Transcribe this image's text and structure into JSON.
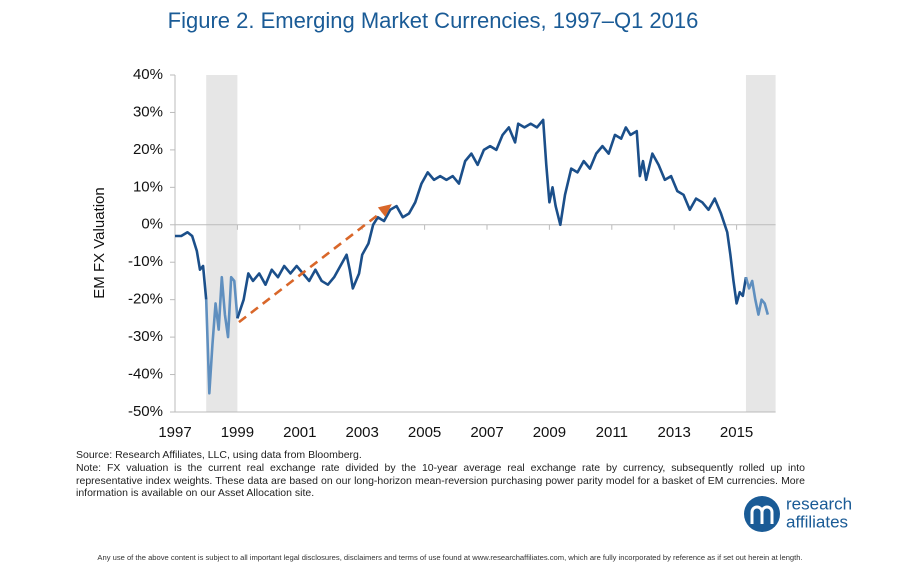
{
  "chart_data": {
    "type": "line",
    "title": "Figure 2. Emerging Market Currencies, 1997–Q1 2016",
    "ylabel": "EM FX Valuation",
    "xlim": [
      1997,
      2016.25
    ],
    "xticks": [
      1997,
      1999,
      2001,
      2003,
      2005,
      2007,
      2009,
      2011,
      2013,
      2015
    ],
    "ylim": [
      -50,
      40
    ],
    "yticks": [
      {
        "value": -50,
        "label": "-50%"
      },
      {
        "value": -40,
        "label": "-40%"
      },
      {
        "value": -30,
        "label": "-30%"
      },
      {
        "value": -20,
        "label": "-20%"
      },
      {
        "value": -10,
        "label": "-10%"
      },
      {
        "value": 0,
        "label": "0%"
      },
      {
        "value": 10,
        "label": "10%"
      },
      {
        "value": 20,
        "label": "20%"
      },
      {
        "value": 30,
        "label": "30%"
      },
      {
        "value": 40,
        "label": "40%"
      }
    ],
    "shaded_ranges": [
      [
        1998,
        1999
      ],
      [
        2015.3,
        2016.25
      ]
    ],
    "shade_color": "#e6e6e6",
    "arrow": {
      "x": [
        1999.05,
        2003.95
      ],
      "y": [
        -26,
        5.5
      ],
      "color": "#d9672a"
    },
    "series": [
      {
        "color": "#1b4f8a",
        "x": [
          1997,
          1997.2,
          1997.4,
          1997.55,
          1997.7,
          1997.8,
          1997.9,
          1998.0
        ],
        "values": [
          -3,
          -3,
          -2,
          -3,
          -7,
          -12,
          -11,
          -20
        ]
      },
      {
        "color": "#5f8fbf",
        "x": [
          1998.0,
          1998.1,
          1998.2,
          1998.3,
          1998.4,
          1998.5,
          1998.6,
          1998.7,
          1998.8,
          1998.9,
          1999.0
        ],
        "values": [
          -20,
          -45,
          -32,
          -21,
          -28,
          -14,
          -24,
          -30,
          -14,
          -15,
          -25
        ]
      },
      {
        "color": "#1b4f8a",
        "x": [
          1999.0,
          1999.2,
          1999.35,
          1999.5,
          1999.7,
          1999.9,
          2000.1,
          2000.3,
          2000.5,
          2000.7,
          2000.9,
          2001.1,
          2001.3,
          2001.5,
          2001.7,
          2001.9,
          2002.1,
          2002.3,
          2002.5,
          2002.6,
          2002.7,
          2002.9,
          2003.0,
          2003.2,
          2003.35,
          2003.5,
          2003.7,
          2003.9,
          2004.1,
          2004.3,
          2004.5,
          2004.7,
          2004.9,
          2005.1,
          2005.3,
          2005.5,
          2005.7,
          2005.9,
          2006.1,
          2006.3,
          2006.5,
          2006.7,
          2006.9,
          2007.1,
          2007.3,
          2007.5,
          2007.7,
          2007.9,
          2008.0,
          2008.2,
          2008.4,
          2008.6,
          2008.8,
          2008.9,
          2009.0,
          2009.1,
          2009.2,
          2009.35,
          2009.5,
          2009.7,
          2009.9,
          2010.1,
          2010.3,
          2010.5,
          2010.7,
          2010.9,
          2011.1,
          2011.3,
          2011.45,
          2011.6,
          2011.8,
          2011.9,
          2012.0,
          2012.1,
          2012.3,
          2012.5,
          2012.7,
          2012.9,
          2013.1,
          2013.3,
          2013.5,
          2013.7,
          2013.9,
          2014.1,
          2014.3,
          2014.5,
          2014.7,
          2014.8,
          2014.9,
          2015.0,
          2015.1,
          2015.2,
          2015.3
        ],
        "values": [
          -25,
          -20,
          -13,
          -15,
          -13,
          -16,
          -12,
          -14,
          -11,
          -13,
          -11,
          -13,
          -15,
          -12,
          -15,
          -16,
          -14,
          -11,
          -8,
          -12,
          -17,
          -13,
          -8,
          -5,
          0,
          2,
          1,
          4,
          5,
          2,
          3,
          6,
          11,
          14,
          12,
          13,
          12,
          13,
          11,
          17,
          19,
          16,
          20,
          21,
          20,
          24,
          26,
          22,
          27,
          26,
          27,
          26,
          28,
          16,
          6,
          10,
          5,
          0,
          8,
          15,
          14,
          17,
          15,
          19,
          21,
          19,
          24,
          23,
          26,
          24,
          25,
          13,
          17,
          12,
          19,
          16,
          12,
          13,
          9,
          8,
          4,
          7,
          6,
          4,
          7,
          3,
          -2,
          -8,
          -15,
          -21,
          -18,
          -19,
          -14
        ]
      },
      {
        "color": "#5f8fbf",
        "x": [
          2015.3,
          2015.4,
          2015.5,
          2015.6,
          2015.7,
          2015.8,
          2015.9,
          2016.0
        ],
        "values": [
          -14,
          -17,
          -15,
          -20,
          -24,
          -20,
          -21,
          -24
        ]
      }
    ]
  },
  "source": "Source: Research Affiliates, LLC, using data from Bloomberg.",
  "note": "Note: FX valuation is the current real exchange rate divided by the 10-year average real exchange rate by currency, subsequently rolled up into representative index weights. These data are based on our long-horizon mean-reversion purchasing power parity model for a basket of EM currencies. More information is available on our Asset Allocation site.",
  "logo": {
    "line1": "research",
    "line2": "affiliates"
  },
  "disclaimer": "Any use of the above content is subject to all important legal disclosures, disclaimers and terms of use found at www.researchaffiliates.com, which are fully incorporated by reference as if set out herein at length."
}
